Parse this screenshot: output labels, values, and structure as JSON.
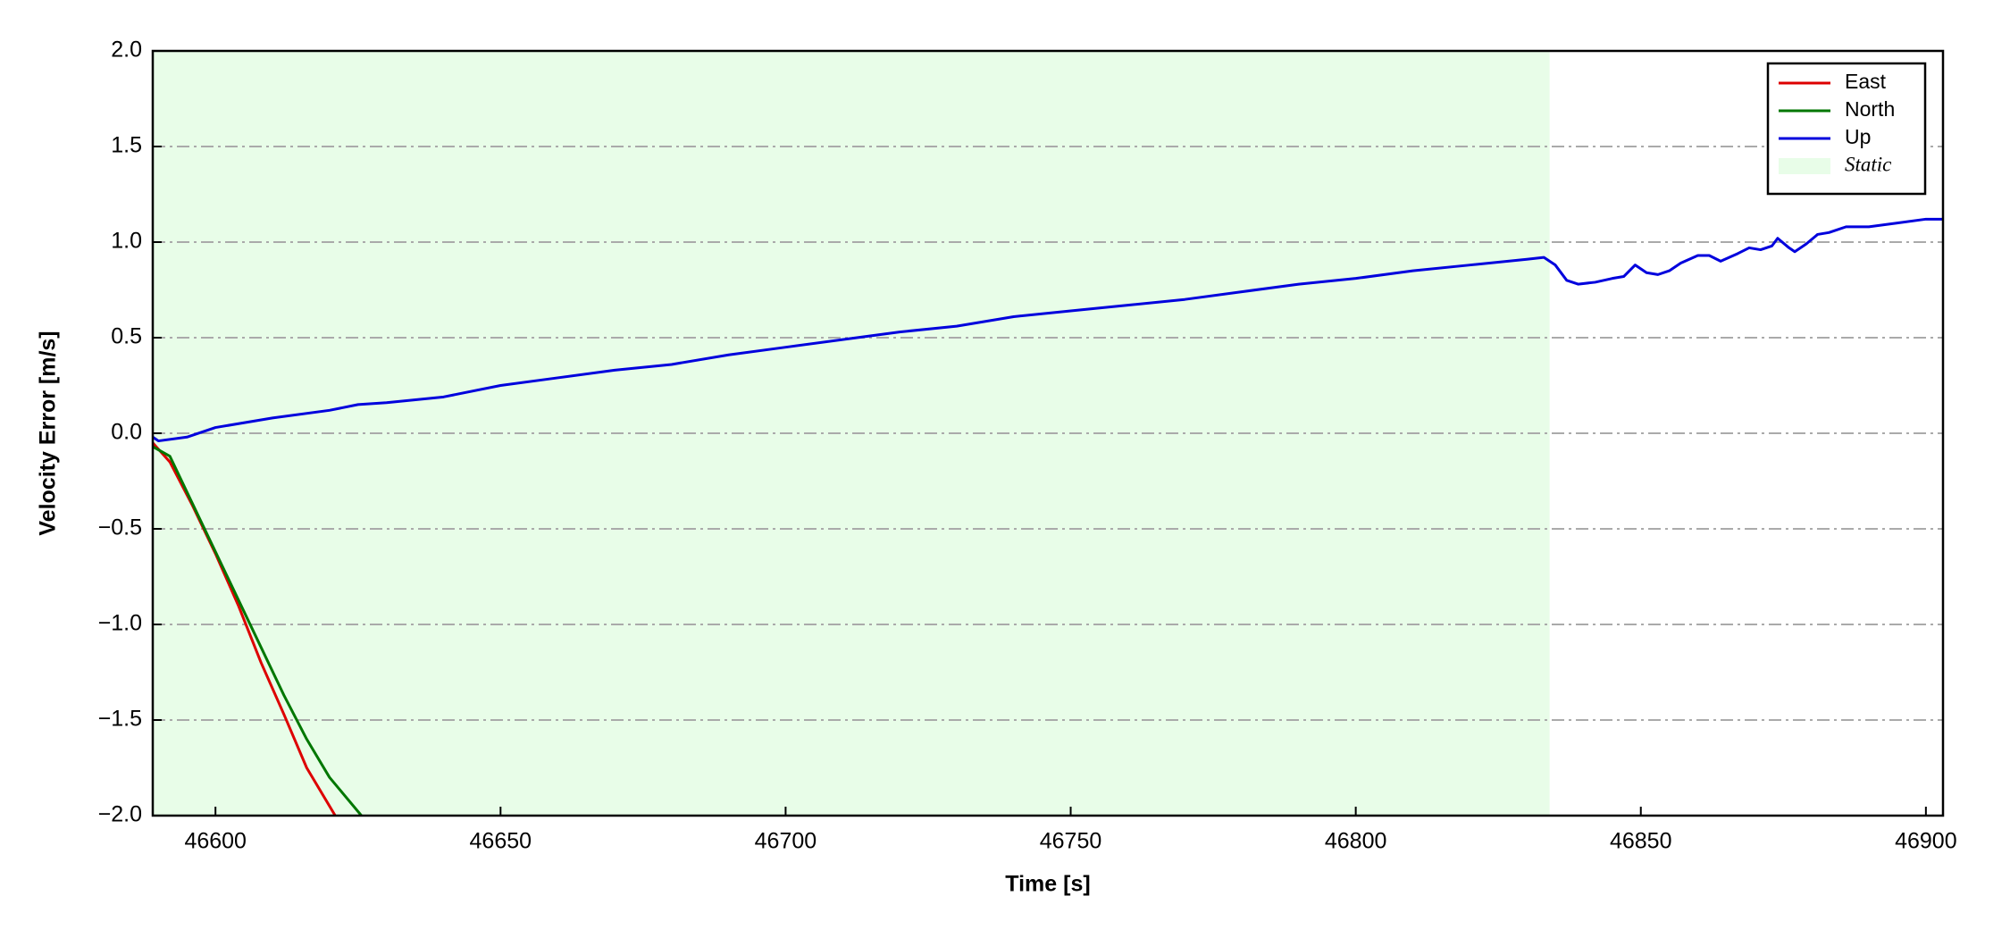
{
  "chart_data": {
    "type": "line",
    "xlabel": "Time [s]",
    "ylabel": "Velocity Error [m/s]",
    "xlim": [
      46589,
      46903
    ],
    "xticks": [
      46600,
      46650,
      46700,
      46750,
      46800,
      46850,
      46900
    ],
    "ylim": [
      -2,
      2
    ],
    "yticks": [
      {
        "value": -2,
        "label": "−2.0"
      },
      {
        "value": -1.5,
        "label": "−1.5"
      },
      {
        "value": -1,
        "label": "−1.0"
      },
      {
        "value": -0.5,
        "label": "−0.5"
      },
      {
        "value": 0,
        "label": "0.0"
      },
      {
        "value": 0.5,
        "label": "0.5"
      },
      {
        "value": 1,
        "label": "1.0"
      },
      {
        "value": 1.5,
        "label": "1.5"
      },
      {
        "value": 2,
        "label": "2.0"
      }
    ],
    "grid": true,
    "legend": "upper right",
    "regions": [
      {
        "name": "Static",
        "xmin": 46589,
        "xmax": 46834,
        "color": "#e8fde8"
      }
    ],
    "series": [
      {
        "name": "East",
        "color": "#dd0000",
        "x": [
          46589,
          46592,
          46596,
          46600,
          46604,
          46608,
          46612,
          46616,
          46621
        ],
        "values": [
          -0.05,
          -0.15,
          -0.38,
          -0.63,
          -0.9,
          -1.2,
          -1.47,
          -1.75,
          -2.0
        ]
      },
      {
        "name": "North",
        "color": "#007700",
        "x": [
          46589,
          46592,
          46596,
          46600,
          46604,
          46608,
          46612,
          46616,
          46620,
          46625.6
        ],
        "values": [
          -0.07,
          -0.12,
          -0.37,
          -0.62,
          -0.87,
          -1.12,
          -1.37,
          -1.6,
          -1.8,
          -2.0
        ]
      },
      {
        "name": "Up",
        "color": "#0000dd",
        "x": [
          46589,
          46590,
          46595,
          46600,
          46610,
          46620,
          46625,
          46630,
          46640,
          46650,
          46660,
          46670,
          46680,
          46690,
          46700,
          46710,
          46720,
          46730,
          46740,
          46750,
          46760,
          46770,
          46780,
          46790,
          46800,
          46810,
          46820,
          46830,
          46833,
          46835,
          46837,
          46839,
          46842,
          46845,
          46847,
          46849,
          46851,
          46853,
          46855,
          46857,
          46860,
          46862,
          46864,
          46867,
          46869,
          46871,
          46873,
          46874,
          46876,
          46877,
          46879,
          46881,
          46883,
          46886,
          46890,
          46895,
          46900,
          46903
        ],
        "values": [
          -0.02,
          -0.04,
          -0.02,
          0.03,
          0.08,
          0.12,
          0.15,
          0.16,
          0.19,
          0.25,
          0.29,
          0.33,
          0.36,
          0.41,
          0.45,
          0.49,
          0.53,
          0.56,
          0.61,
          0.64,
          0.67,
          0.7,
          0.74,
          0.78,
          0.81,
          0.85,
          0.88,
          0.91,
          0.92,
          0.88,
          0.8,
          0.78,
          0.79,
          0.81,
          0.82,
          0.88,
          0.84,
          0.83,
          0.85,
          0.89,
          0.93,
          0.93,
          0.9,
          0.94,
          0.97,
          0.96,
          0.98,
          1.02,
          0.97,
          0.95,
          0.99,
          1.04,
          1.05,
          1.08,
          1.08,
          1.1,
          1.12,
          1.12
        ]
      }
    ]
  }
}
